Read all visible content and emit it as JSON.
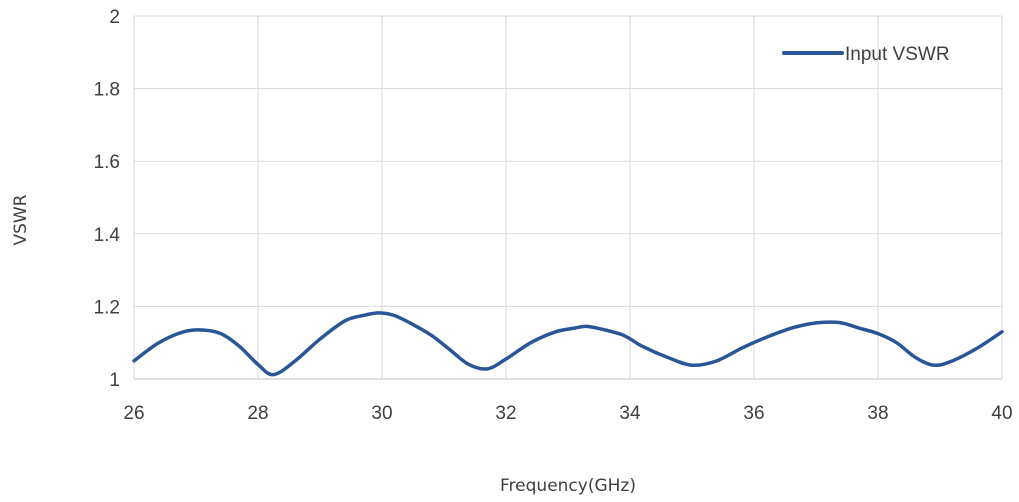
{
  "chart_data": {
    "type": "line",
    "title": "",
    "xlabel": "Frequency(GHz)",
    "ylabel": "VSWR",
    "xlim": [
      26,
      40
    ],
    "ylim": [
      1,
      2
    ],
    "x_ticks": [
      "26",
      "28",
      "30",
      "32",
      "34",
      "36",
      "38",
      "40"
    ],
    "y_ticks": [
      "1",
      "1.2",
      "1.4",
      "1.6",
      "1.8",
      "2"
    ],
    "grid": true,
    "legend_position": "top-right",
    "series": [
      {
        "name": "Input VSWR",
        "color": "#2a5597",
        "x": [
          26,
          26.4,
          26.8,
          27.1,
          27.4,
          27.7,
          28.0,
          28.25,
          28.6,
          29.0,
          29.4,
          29.7,
          29.95,
          30.2,
          30.5,
          30.8,
          31.1,
          31.4,
          31.7,
          32.0,
          32.4,
          32.8,
          33.1,
          33.3,
          33.6,
          33.9,
          34.2,
          34.6,
          35.0,
          35.4,
          35.8,
          36.2,
          36.6,
          36.9,
          37.1,
          37.4,
          37.7,
          38.0,
          38.3,
          38.6,
          38.9,
          39.2,
          39.6,
          40.0
        ],
        "y": [
          1.05,
          1.1,
          1.13,
          1.135,
          1.125,
          1.09,
          1.04,
          1.012,
          1.05,
          1.11,
          1.16,
          1.175,
          1.182,
          1.175,
          1.15,
          1.12,
          1.08,
          1.04,
          1.028,
          1.055,
          1.1,
          1.13,
          1.14,
          1.145,
          1.135,
          1.12,
          1.09,
          1.06,
          1.038,
          1.05,
          1.085,
          1.115,
          1.14,
          1.152,
          1.156,
          1.155,
          1.14,
          1.125,
          1.1,
          1.06,
          1.038,
          1.05,
          1.085,
          1.13
        ]
      }
    ]
  }
}
